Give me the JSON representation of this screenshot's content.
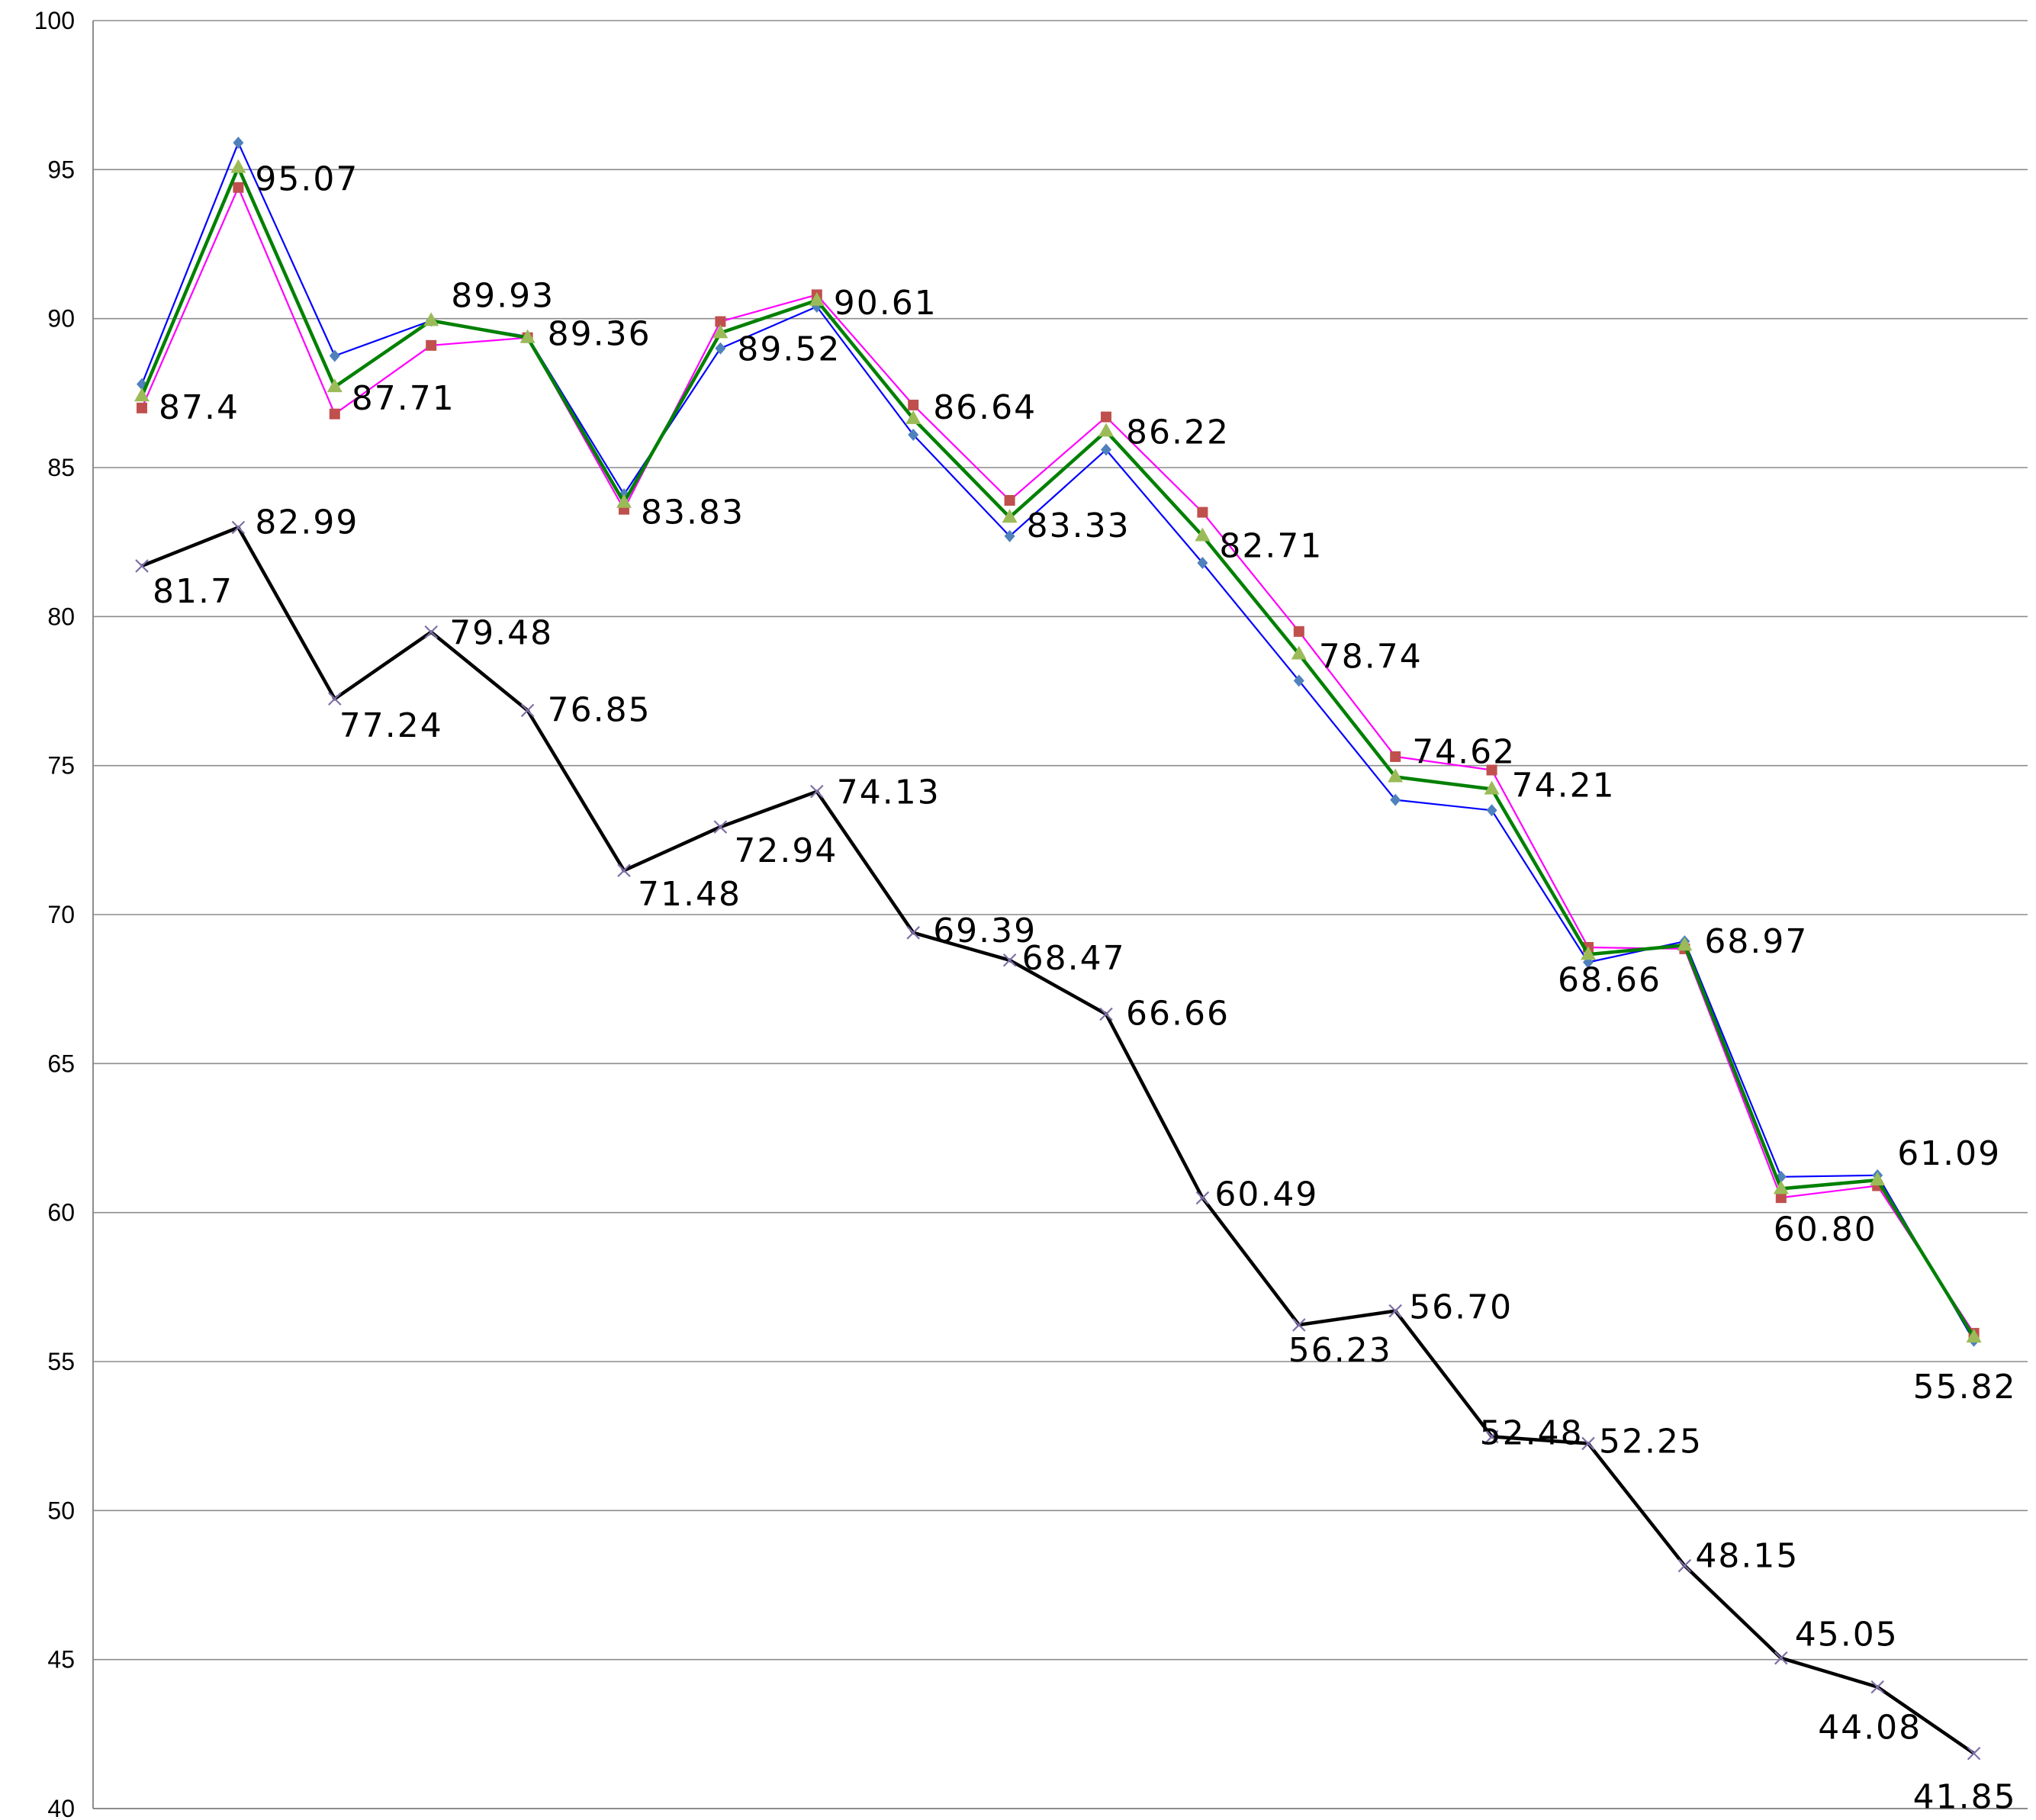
{
  "chart_data": {
    "type": "line",
    "title": "",
    "xlabel": "",
    "ylabel": "",
    "ylim": [
      40,
      100
    ],
    "ytick_step": 5,
    "yticks": [
      "40",
      "45",
      "50",
      "55",
      "60",
      "65",
      "70",
      "75",
      "80",
      "85",
      "90",
      "95",
      "100"
    ],
    "grid": true,
    "legend": "none",
    "num_points": 20,
    "series": [
      {
        "key": "blue",
        "color": "#0000ff",
        "marker_color": "#4f81bd",
        "marker": "diamond",
        "values": [
          87.8,
          95.9,
          88.75,
          89.93,
          89.4,
          84.1,
          89.0,
          90.4,
          86.1,
          82.7,
          85.6,
          81.8,
          77.85,
          73.85,
          73.5,
          68.4,
          69.1,
          61.2,
          61.25,
          55.7
        ]
      },
      {
        "key": "magenta",
        "color": "#ff00ff",
        "marker_color": "#c0504d",
        "marker": "square",
        "values": [
          87.0,
          94.4,
          86.8,
          89.1,
          89.36,
          83.6,
          89.9,
          90.8,
          87.1,
          83.9,
          86.7,
          83.5,
          79.5,
          75.3,
          74.85,
          68.9,
          68.85,
          60.5,
          60.9,
          55.95
        ]
      },
      {
        "key": "green",
        "color": "#008000",
        "marker_color": "#9bbb59",
        "marker": "triangle",
        "values": [
          87.4,
          95.07,
          87.71,
          89.93,
          89.36,
          83.83,
          89.52,
          90.61,
          86.64,
          83.33,
          86.22,
          82.71,
          78.74,
          74.62,
          74.21,
          68.66,
          68.97,
          60.8,
          61.09,
          55.82
        ],
        "labels": [
          "87.4",
          "95.07",
          "87.71",
          "89.93",
          "89.36",
          "83.83",
          "89.52",
          "90.61",
          "86.64",
          "83.33",
          "86.22",
          "82.71",
          "78.74",
          "74.62",
          "74.21",
          "68.66",
          "68.97",
          "60.80",
          "61.09",
          "55.82"
        ]
      },
      {
        "key": "black",
        "color": "#000000",
        "marker_color": "#7f6fa8",
        "marker": "x",
        "values": [
          81.7,
          82.99,
          77.24,
          79.48,
          76.85,
          71.48,
          72.94,
          74.13,
          69.39,
          68.47,
          66.66,
          60.49,
          56.23,
          56.7,
          52.48,
          52.25,
          48.15,
          45.05,
          44.08,
          41.85
        ],
        "labels": [
          "81.7",
          "82.99",
          "77.24",
          "79.48",
          "76.85",
          "71.48",
          "72.94",
          "74.13",
          "69.39",
          "68.47",
          "66.66",
          "60.49",
          "56.23",
          "56.70",
          "52.48",
          "52.25",
          "48.15",
          "45.05",
          "44.08",
          "41.85"
        ]
      }
    ]
  }
}
